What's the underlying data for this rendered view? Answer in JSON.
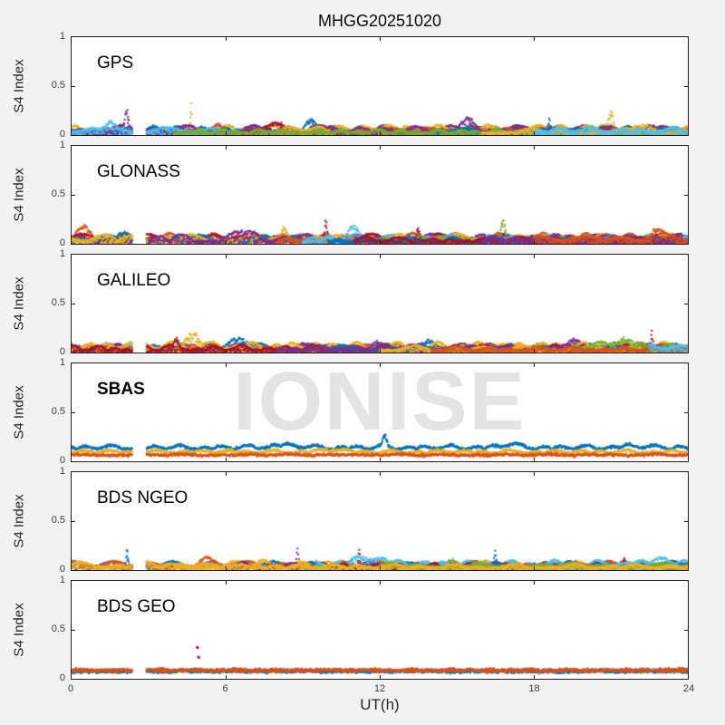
{
  "chart_data": {
    "type": "scatter",
    "title": "MHGG20251020",
    "xlabel": "UT(h)",
    "ylabel": "S4 Index",
    "watermark": "IONISE",
    "axes": {
      "xlim": [
        0,
        24
      ],
      "ylim": [
        0,
        1
      ],
      "xticks": [
        0,
        6,
        12,
        18,
        24
      ],
      "yticks": [
        0,
        0.5,
        1
      ],
      "xtick_labels": [
        "0",
        "6",
        "12",
        "18",
        "24"
      ],
      "ytick_labels": [
        "1",
        "0.5",
        "0"
      ],
      "grid": false,
      "legend": null
    },
    "data_gap_hours": [
      2.35,
      2.9
    ],
    "point_step_hours": 0.025,
    "palette": [
      "#0072BD",
      "#D95319",
      "#EDB120",
      "#7E2F8E",
      "#77AC30",
      "#4DBEEE",
      "#A2142F"
    ],
    "panels": [
      {
        "label": "GPS",
        "bold": false,
        "seed": 11,
        "tracks": [
          {
            "c": 2,
            "b": 0.03,
            "a": 0.07
          },
          {
            "c": 1,
            "b": 0.02,
            "a": 0.05
          },
          {
            "c": 0,
            "b": 0.03,
            "a": 0.06
          },
          {
            "c": 3,
            "b": 0.02,
            "a": 0.08
          },
          {
            "c": 5,
            "b": 0.03,
            "a": 0.05,
            "e": 10
          },
          {
            "c": 6,
            "b": 0.02,
            "a": 0.06,
            "s": 6
          },
          {
            "c": 2,
            "b": 0.04,
            "a": 0.06,
            "s": 8
          },
          {
            "c": 1,
            "b": 0.03,
            "a": 0.04,
            "s": 12
          },
          {
            "c": 3,
            "b": 0.03,
            "a": 0.06,
            "s": 10
          },
          {
            "c": 0,
            "b": 0.02,
            "a": 0.05,
            "s": 14
          },
          {
            "c": 4,
            "b": 0.02,
            "a": 0.04,
            "s": 4
          },
          {
            "c": 2,
            "b": 0.02,
            "a": 0.05,
            "s": 16
          },
          {
            "c": 5,
            "b": 0.03,
            "a": 0.05,
            "s": 18
          }
        ],
        "bumps": [
          {
            "k": 3,
            "t": 2.15,
            "h": 0.2,
            "w": 0.08
          },
          {
            "k": 4,
            "t": 1.5,
            "h": 0.11,
            "w": 0.25
          },
          {
            "k": 0,
            "t": 4.65,
            "h": 0.3,
            "w": 0.035
          },
          {
            "k": 6,
            "t": 21.0,
            "h": 0.22,
            "w": 0.1
          },
          {
            "k": 2,
            "t": 18.6,
            "h": 0.15,
            "w": 0.07
          },
          {
            "k": 8,
            "t": 15.4,
            "h": 0.1,
            "w": 0.35
          },
          {
            "k": 5,
            "t": 8.2,
            "h": 0.08,
            "w": 0.5
          },
          {
            "k": 9,
            "t": 13.6,
            "h": 0.1,
            "w": 0.25
          },
          {
            "k": 2,
            "t": 9.3,
            "h": 0.08,
            "w": 0.3
          },
          {
            "k": 11,
            "t": 22.3,
            "h": 0.08,
            "w": 0.3
          },
          {
            "k": 1,
            "t": 5.8,
            "h": 0.07,
            "w": 0.4
          }
        ],
        "outliers": []
      },
      {
        "label": "GLONASS",
        "bold": false,
        "seed": 22,
        "tracks": [
          {
            "c": 1,
            "b": 0.04,
            "a": 0.07
          },
          {
            "c": 6,
            "b": 0.03,
            "a": 0.07
          },
          {
            "c": 0,
            "b": 0.03,
            "a": 0.06
          },
          {
            "c": 2,
            "b": 0.03,
            "a": 0.07
          },
          {
            "c": 3,
            "b": 0.02,
            "a": 0.08,
            "s": 3
          },
          {
            "c": 1,
            "b": 0.02,
            "a": 0.05,
            "s": 8
          },
          {
            "c": 5,
            "b": 0.03,
            "a": 0.06,
            "s": 9
          },
          {
            "c": 4,
            "b": 0.02,
            "a": 0.06,
            "s": 12
          },
          {
            "c": 2,
            "b": 0.02,
            "a": 0.05,
            "s": 14
          },
          {
            "c": 0,
            "b": 0.02,
            "a": 0.05,
            "s": 10
          },
          {
            "c": 6,
            "b": 0.02,
            "a": 0.05,
            "s": 11
          },
          {
            "c": 3,
            "b": 0.03,
            "a": 0.05,
            "s": 16
          },
          {
            "c": 1,
            "b": 0.03,
            "a": 0.06,
            "s": 18
          }
        ],
        "bumps": [
          {
            "k": 1,
            "t": 9.9,
            "h": 0.22,
            "w": 0.08
          },
          {
            "k": 7,
            "t": 16.8,
            "h": 0.2,
            "w": 0.1
          },
          {
            "k": 3,
            "t": 8.3,
            "h": 0.15,
            "w": 0.15
          },
          {
            "k": 6,
            "t": 11.0,
            "h": 0.12,
            "w": 0.3
          },
          {
            "k": 10,
            "t": 13.5,
            "h": 0.15,
            "w": 0.1
          },
          {
            "k": 2,
            "t": 2.0,
            "h": 0.1,
            "w": 0.2
          },
          {
            "k": 12,
            "t": 22.8,
            "h": 0.1,
            "w": 0.3
          },
          {
            "k": 4,
            "t": 6.8,
            "h": 0.1,
            "w": 0.4
          },
          {
            "k": 0,
            "t": 0.5,
            "h": 0.08,
            "w": 0.4
          }
        ],
        "outliers": []
      },
      {
        "label": "GALILEO",
        "bold": false,
        "seed": 33,
        "tracks": [
          {
            "c": 5,
            "b": 0.04,
            "a": 0.05,
            "e": 3
          },
          {
            "c": 0,
            "b": 0.03,
            "a": 0.06
          },
          {
            "c": 3,
            "b": 0.03,
            "a": 0.06
          },
          {
            "c": 1,
            "b": 0.03,
            "a": 0.05
          },
          {
            "c": 2,
            "b": 0.04,
            "a": 0.07
          },
          {
            "c": 6,
            "b": 0.02,
            "a": 0.06
          },
          {
            "c": 0,
            "b": 0.02,
            "a": 0.05,
            "s": 10
          },
          {
            "c": 3,
            "b": 0.02,
            "a": 0.06,
            "s": 8
          },
          {
            "c": 2,
            "b": 0.02,
            "a": 0.05,
            "s": 12
          },
          {
            "c": 4,
            "b": 0.04,
            "a": 0.05,
            "s": 19.5
          },
          {
            "c": 1,
            "b": 0.02,
            "a": 0.04,
            "s": 14
          },
          {
            "c": 5,
            "b": 0.04,
            "a": 0.04,
            "s": 22.5
          }
        ],
        "bumps": [
          {
            "k": 4,
            "t": 4.7,
            "h": 0.17,
            "w": 0.35
          },
          {
            "k": 1,
            "t": 6.6,
            "h": 0.1,
            "w": 0.45
          },
          {
            "k": 5,
            "t": 4.1,
            "h": 0.12,
            "w": 0.12
          },
          {
            "k": 1,
            "t": 13.8,
            "h": 0.08,
            "w": 0.3
          },
          {
            "k": 5,
            "t": 22.6,
            "h": 0.18,
            "w": 0.04
          },
          {
            "k": 9,
            "t": 21.5,
            "h": 0.08,
            "w": 0.8
          },
          {
            "k": 2,
            "t": 19.5,
            "h": 0.1,
            "w": 0.25
          },
          {
            "k": 7,
            "t": 12.0,
            "h": 0.07,
            "w": 0.4
          }
        ],
        "outliers": []
      },
      {
        "label": "SBAS",
        "bold": true,
        "seed": 44,
        "tracks": [
          {
            "c": 0,
            "b": 0.125,
            "a": 0.04,
            "f": 0
          },
          {
            "c": 2,
            "b": 0.085,
            "a": 0.03,
            "f": 0
          },
          {
            "c": 1,
            "b": 0.06,
            "a": 0.012,
            "f": 0
          }
        ],
        "bumps": [
          {
            "k": 0,
            "t": 12.2,
            "h": 0.12,
            "w": 0.1
          },
          {
            "k": 0,
            "t": 8.3,
            "h": 0.035,
            "w": 0.7
          },
          {
            "k": 0,
            "t": 17.0,
            "h": 0.04,
            "w": 0.5
          },
          {
            "k": 0,
            "t": 21.8,
            "h": 0.03,
            "w": 0.5
          },
          {
            "k": 1,
            "t": 10.2,
            "h": 0.025,
            "w": 0.6
          }
        ],
        "outliers": []
      },
      {
        "label": "BDS NGEO",
        "bold": false,
        "seed": 55,
        "tracks": [
          {
            "c": 0,
            "b": 0.03,
            "a": 0.06
          },
          {
            "c": 1,
            "b": 0.03,
            "a": 0.06
          },
          {
            "c": 2,
            "b": 0.03,
            "a": 0.06
          },
          {
            "c": 3,
            "b": 0.02,
            "a": 0.06,
            "s": 6
          },
          {
            "c": 4,
            "b": 0.02,
            "a": 0.05,
            "s": 9
          },
          {
            "c": 5,
            "b": 0.04,
            "a": 0.06,
            "s": 9.5
          },
          {
            "c": 6,
            "b": 0.02,
            "a": 0.05,
            "s": 10
          },
          {
            "c": 0,
            "b": 0.02,
            "a": 0.05,
            "s": 14
          },
          {
            "c": 1,
            "b": 0.02,
            "a": 0.04,
            "s": 16
          },
          {
            "c": 5,
            "b": 0.03,
            "a": 0.05,
            "s": 19
          },
          {
            "c": 4,
            "b": 0.03,
            "a": 0.04,
            "s": 12
          },
          {
            "c": 2,
            "b": 0.02,
            "a": 0.04,
            "s": 4
          }
        ],
        "bumps": [
          {
            "k": 0,
            "t": 2.15,
            "h": 0.17,
            "w": 0.06
          },
          {
            "k": 3,
            "t": 8.8,
            "h": 0.19,
            "w": 0.05
          },
          {
            "k": 6,
            "t": 11.2,
            "h": 0.21,
            "w": 0.04
          },
          {
            "k": 5,
            "t": 11.6,
            "h": 0.07,
            "w": 0.9
          },
          {
            "k": 7,
            "t": 16.5,
            "h": 0.17,
            "w": 0.05
          },
          {
            "k": 4,
            "t": 14.8,
            "h": 0.09,
            "w": 0.2
          },
          {
            "k": 6,
            "t": 21.5,
            "h": 0.1,
            "w": 0.12
          },
          {
            "k": 9,
            "t": 23.0,
            "h": 0.07,
            "w": 0.4
          },
          {
            "k": 1,
            "t": 5.2,
            "h": 0.07,
            "w": 0.3
          },
          {
            "k": 2,
            "t": 7.5,
            "h": 0.06,
            "w": 0.4
          }
        ],
        "outliers": []
      },
      {
        "label": "BDS GEO",
        "bold": false,
        "seed": 66,
        "tracks": [
          {
            "c": 1,
            "b": 0.085,
            "a": 0.012,
            "f": 0
          },
          {
            "c": 0,
            "b": 0.07,
            "a": 0.008,
            "f": 0
          },
          {
            "c": 1,
            "b": 0.08,
            "a": 0.008,
            "f": 0
          }
        ],
        "bumps": [
          {
            "k": 0,
            "t": 23.9,
            "h": 0.012,
            "w": 0.4
          }
        ],
        "outliers": [
          [
            4.9,
            0.32,
            6
          ],
          [
            4.95,
            0.22,
            6
          ]
        ]
      }
    ]
  }
}
